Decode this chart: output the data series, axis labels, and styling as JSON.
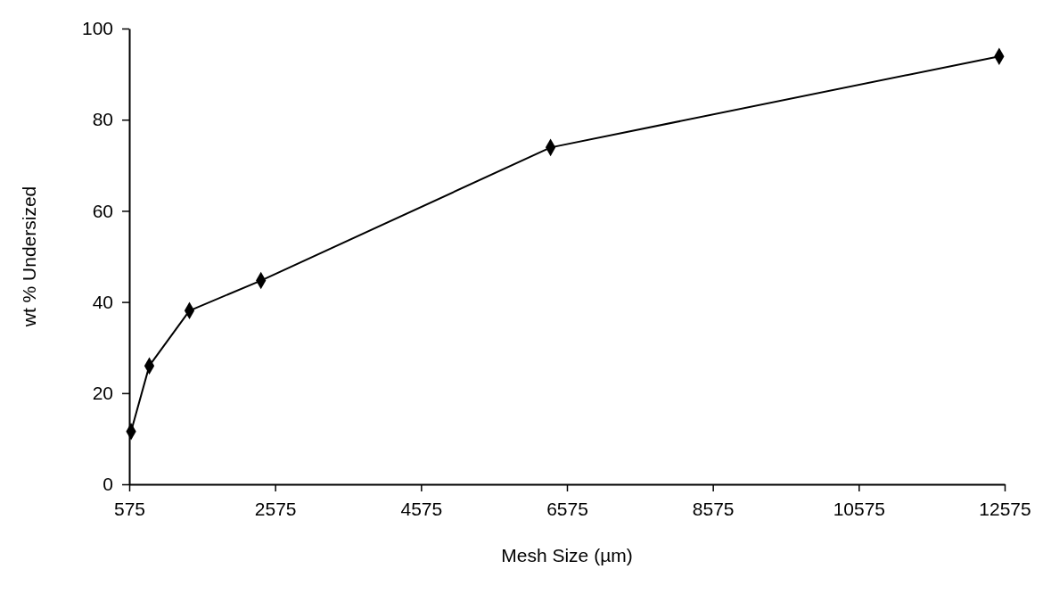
{
  "chart_data": {
    "type": "line",
    "xlabel": "Mesh Size (µm)",
    "ylabel": "wt % Undersized",
    "x": [
      600,
      850,
      1400,
      2380,
      6350,
      12500
    ],
    "series": [
      {
        "color": "#000000",
        "values": [
          11.6,
          26.0,
          38.1,
          44.7,
          73.9,
          93.9
        ]
      }
    ],
    "xlim": [
      575,
      12575
    ],
    "xticks": [
      575,
      2575,
      4575,
      6575,
      8575,
      10575,
      12575
    ],
    "ylim": [
      0,
      100
    ],
    "yticks": [
      0,
      20,
      40,
      60,
      80,
      100
    ],
    "marker": "diamond",
    "line_style": "solid",
    "grid": false
  }
}
